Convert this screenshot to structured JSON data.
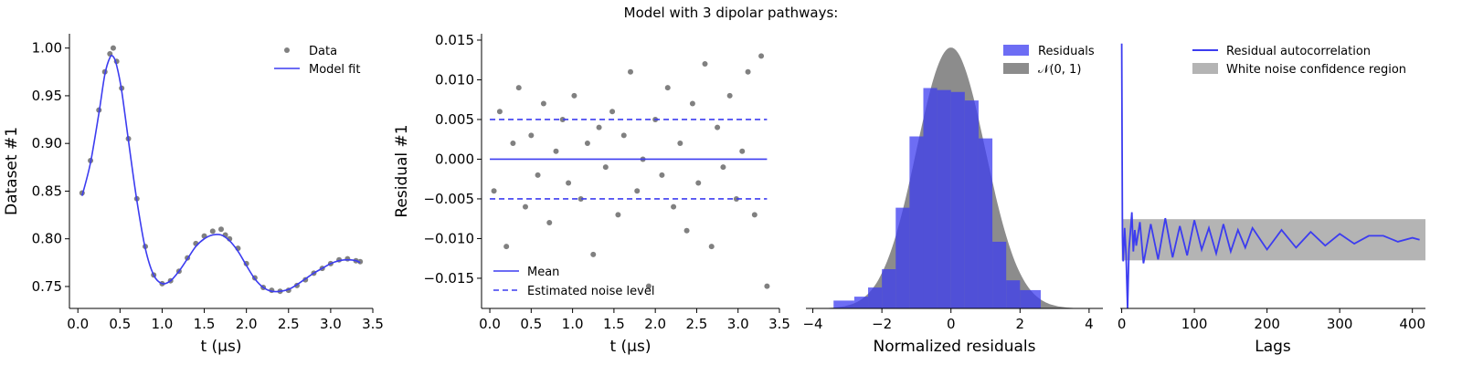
{
  "figure": {
    "title": "Model with 3 dipolar pathways:"
  },
  "chart_data": [
    {
      "type": "scatter",
      "panel": "data-fit",
      "xlabel": "t (μs)",
      "ylabel": "Dataset #1",
      "xlim": [
        -0.1,
        3.5
      ],
      "ylim": [
        0.727,
        1.015
      ],
      "xticks": [
        0.0,
        0.5,
        1.0,
        1.5,
        2.0,
        2.5,
        3.0,
        3.5
      ],
      "xtick_labels": [
        "0.0",
        "0.5",
        "1.0",
        "1.5",
        "2.0",
        "2.5",
        "3.0",
        "3.5"
      ],
      "yticks": [
        0.75,
        0.8,
        0.85,
        0.9,
        0.95,
        1.0
      ],
      "ytick_labels": [
        "0.75",
        "0.80",
        "0.85",
        "0.90",
        "0.95",
        "1.00"
      ],
      "legend": [
        "Data",
        "Model fit"
      ],
      "legend_position": "top-right",
      "series": [
        {
          "name": "Data",
          "style": "points",
          "color": "#808080",
          "x": [
            0.05,
            0.15,
            0.25,
            0.32,
            0.38,
            0.42,
            0.46,
            0.52,
            0.6,
            0.7,
            0.8,
            0.9,
            1.0,
            1.1,
            1.2,
            1.3,
            1.4,
            1.5,
            1.6,
            1.7,
            1.75,
            1.8,
            1.9,
            2.0,
            2.1,
            2.2,
            2.3,
            2.4,
            2.5,
            2.6,
            2.7,
            2.8,
            2.9,
            3.0,
            3.1,
            3.2,
            3.3,
            3.35
          ],
          "y": [
            0.848,
            0.882,
            0.935,
            0.975,
            0.994,
            1.0,
            0.986,
            0.958,
            0.905,
            0.842,
            0.792,
            0.762,
            0.753,
            0.756,
            0.766,
            0.78,
            0.795,
            0.803,
            0.808,
            0.81,
            0.804,
            0.8,
            0.79,
            0.774,
            0.759,
            0.749,
            0.746,
            0.745,
            0.746,
            0.751,
            0.757,
            0.764,
            0.769,
            0.774,
            0.778,
            0.779,
            0.777,
            0.776
          ]
        },
        {
          "name": "Model fit",
          "style": "line",
          "color": "#3c3cf0",
          "x": [
            0.05,
            0.15,
            0.25,
            0.32,
            0.38,
            0.42,
            0.46,
            0.52,
            0.6,
            0.7,
            0.8,
            0.9,
            1.0,
            1.1,
            1.2,
            1.3,
            1.4,
            1.5,
            1.6,
            1.7,
            1.8,
            1.9,
            2.0,
            2.1,
            2.2,
            2.3,
            2.4,
            2.5,
            2.6,
            2.7,
            2.8,
            2.9,
            3.0,
            3.1,
            3.2,
            3.3,
            3.35
          ],
          "y": [
            0.845,
            0.88,
            0.932,
            0.972,
            0.99,
            0.991,
            0.982,
            0.955,
            0.903,
            0.84,
            0.79,
            0.762,
            0.753,
            0.756,
            0.766,
            0.779,
            0.792,
            0.8,
            0.804,
            0.804,
            0.798,
            0.787,
            0.772,
            0.758,
            0.749,
            0.745,
            0.745,
            0.747,
            0.752,
            0.758,
            0.764,
            0.769,
            0.774,
            0.777,
            0.778,
            0.777,
            0.775
          ]
        }
      ]
    },
    {
      "type": "scatter",
      "panel": "residuals",
      "xlabel": "t (μs)",
      "ylabel": "Residual #1",
      "xlim": [
        -0.1,
        3.5
      ],
      "ylim": [
        -0.0188,
        0.0158
      ],
      "xticks": [
        0.0,
        0.5,
        1.0,
        1.5,
        2.0,
        2.5,
        3.0,
        3.5
      ],
      "xtick_labels": [
        "0.0",
        "0.5",
        "1.0",
        "1.5",
        "2.0",
        "2.5",
        "3.0",
        "3.5"
      ],
      "yticks": [
        -0.015,
        -0.01,
        -0.005,
        0.0,
        0.005,
        0.01,
        0.015
      ],
      "ytick_labels": [
        "−0.015",
        "−0.010",
        "−0.005",
        "0.000",
        "0.005",
        "0.010",
        "0.015"
      ],
      "legend": [
        "Mean",
        "Estimated noise level"
      ],
      "legend_position": "bottom-left",
      "mean": 0.0,
      "noise_level": 0.005,
      "series": [
        {
          "name": "Residuals",
          "style": "points",
          "color": "#808080",
          "x": [
            0.05,
            0.12,
            0.2,
            0.28,
            0.35,
            0.43,
            0.5,
            0.58,
            0.65,
            0.72,
            0.8,
            0.88,
            0.95,
            1.02,
            1.1,
            1.18,
            1.25,
            1.32,
            1.4,
            1.48,
            1.55,
            1.62,
            1.7,
            1.78,
            1.85,
            1.92,
            2.0,
            2.08,
            2.15,
            2.22,
            2.3,
            2.38,
            2.45,
            2.52,
            2.6,
            2.68,
            2.75,
            2.82,
            2.9,
            2.98,
            3.05,
            3.12,
            3.2,
            3.28,
            3.35
          ],
          "y": [
            -0.004,
            0.006,
            -0.011,
            0.002,
            0.009,
            -0.006,
            0.003,
            -0.002,
            0.007,
            -0.008,
            0.001,
            0.005,
            -0.003,
            0.008,
            -0.005,
            0.002,
            -0.012,
            0.004,
            -0.001,
            0.006,
            -0.007,
            0.003,
            0.011,
            -0.004,
            0.0,
            -0.016,
            0.005,
            -0.002,
            0.009,
            -0.006,
            0.002,
            -0.009,
            0.007,
            -0.003,
            0.012,
            -0.011,
            0.004,
            -0.001,
            0.008,
            -0.005,
            0.001,
            0.011,
            -0.007,
            0.013,
            -0.016
          ]
        }
      ]
    },
    {
      "type": "bar",
      "panel": "histogram",
      "xlabel": "Normalized residuals",
      "ylabel": "",
      "xlim": [
        -4.2,
        4.4
      ],
      "ylim": [
        0,
        0.42
      ],
      "xticks": [
        -4,
        -2,
        0,
        2,
        4
      ],
      "xtick_labels": [
        "−4",
        "−2",
        "0",
        "2",
        "4"
      ],
      "legend": [
        "Residuals",
        "𝒩(0, 1)"
      ],
      "legend_position": "top-right",
      "bin_edges": [
        -3.4,
        -2.8,
        -2.4,
        -2.0,
        -1.6,
        -1.2,
        -0.8,
        -0.4,
        0.0,
        0.4,
        0.8,
        1.2,
        1.6,
        2.0,
        2.6
      ],
      "values": [
        0.012,
        0.018,
        0.032,
        0.06,
        0.154,
        0.263,
        0.337,
        0.334,
        0.331,
        0.318,
        0.26,
        0.102,
        0.043,
        0.028
      ],
      "residual_color": "#3c3cf0",
      "normal_color": "#8c8c8c"
    },
    {
      "type": "line",
      "panel": "autocorrelation",
      "xlabel": "Lags",
      "ylabel": "",
      "xlim": [
        -2,
        418
      ],
      "ylim": [
        -0.35,
        1.05
      ],
      "xticks": [
        0,
        100,
        200,
        300,
        400
      ],
      "xtick_labels": [
        "0",
        "100",
        "200",
        "300",
        "400"
      ],
      "legend": [
        "Residual autocorrelation",
        "White noise confidence region"
      ],
      "legend_position": "top-right",
      "confidence_band": [
        -0.105,
        0.105
      ],
      "series": [
        {
          "name": "Residual autocorrelation",
          "color": "#3c3cf0",
          "x": [
            0,
            1,
            2,
            4,
            6,
            8,
            10,
            12,
            14,
            16,
            18,
            20,
            25,
            30,
            40,
            50,
            60,
            70,
            80,
            90,
            100,
            110,
            120,
            130,
            140,
            150,
            160,
            170,
            180,
            200,
            220,
            240,
            260,
            280,
            300,
            320,
            340,
            360,
            380,
            400,
            410
          ],
          "y": [
            1.0,
            0.02,
            -0.11,
            0.06,
            -0.08,
            -0.35,
            -0.05,
            0.04,
            0.14,
            -0.06,
            0.05,
            -0.03,
            0.09,
            -0.12,
            0.08,
            -0.1,
            0.11,
            -0.09,
            0.07,
            -0.08,
            0.1,
            -0.05,
            0.06,
            -0.07,
            0.08,
            -0.06,
            0.05,
            -0.04,
            0.06,
            -0.05,
            0.05,
            -0.04,
            0.04,
            -0.03,
            0.03,
            -0.02,
            0.02,
            0.02,
            -0.01,
            0.01,
            0.0
          ]
        }
      ]
    }
  ]
}
